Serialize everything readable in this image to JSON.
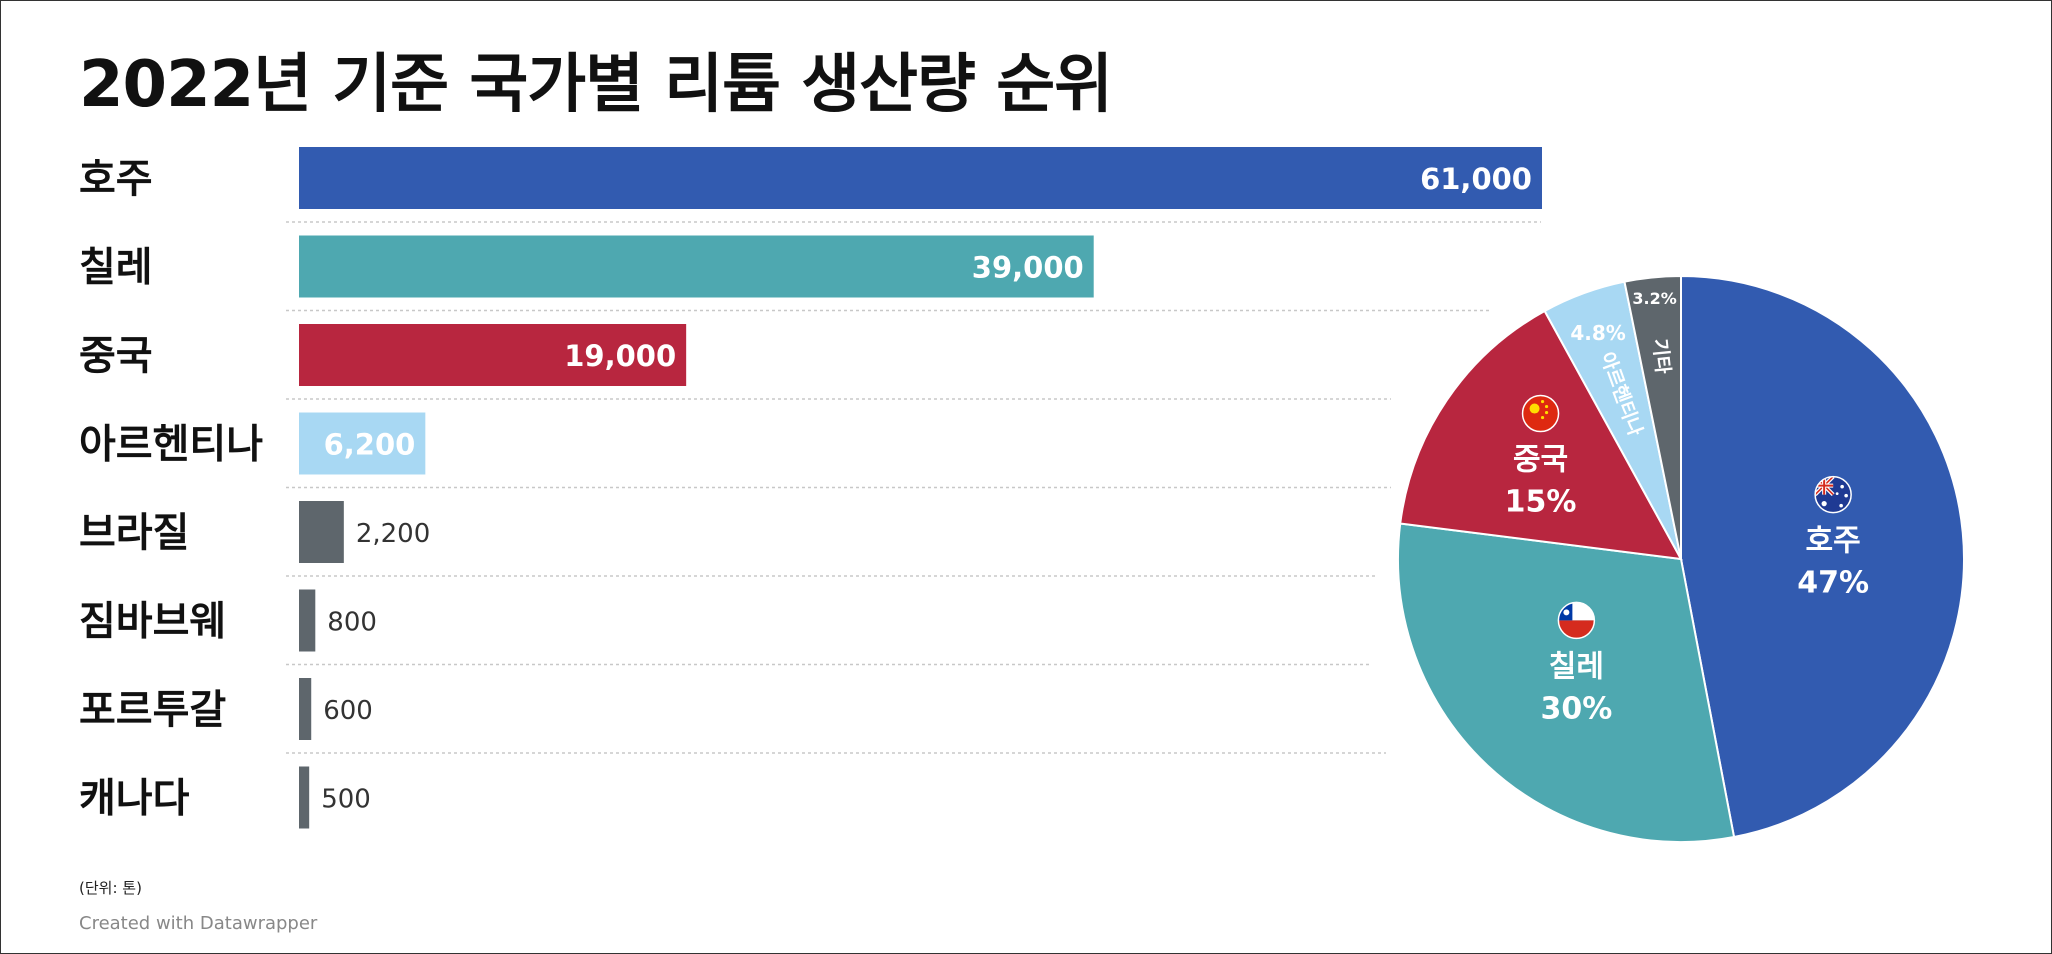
{
  "chart_data": [
    {
      "type": "bar",
      "title": "2022년 기준 국가별 리튬 생산량 순위",
      "categories": [
        "호주",
        "칠레",
        "중국",
        "아르헨티나",
        "브라질",
        "짐바브웨",
        "포르투갈",
        "캐나다"
      ],
      "values": [
        61000,
        39000,
        19000,
        6200,
        2200,
        800,
        600,
        500
      ],
      "value_labels": [
        "61,000",
        "39,000",
        "19,000",
        "6,200",
        "2,200",
        "800",
        "600",
        "500"
      ],
      "colors": [
        "#325bb0",
        "#4ea8b0",
        "#b8263f",
        "#a8d8f3",
        "#5e666c",
        "#5e666c",
        "#5e666c",
        "#5e666c"
      ],
      "xlim": [
        0,
        61000
      ],
      "grid": false,
      "unit_note": "(단위: 톤)",
      "credit": "Created with Datawrapper"
    },
    {
      "type": "pie",
      "slices": [
        {
          "label": "호주",
          "value": 47,
          "value_label": "47%",
          "color": "#325bb0",
          "flag": "australia-flag-icon"
        },
        {
          "label": "칠레",
          "value": 30,
          "value_label": "30%",
          "color": "#4ea8b0",
          "flag": "chile-flag-icon"
        },
        {
          "label": "중국",
          "value": 15,
          "value_label": "15%",
          "color": "#b8263f",
          "flag": "china-flag-icon"
        },
        {
          "label": "아르헨티나",
          "value": 4.8,
          "value_label": "4.8%",
          "color": "#a8d8f3"
        },
        {
          "label": "기타",
          "value": 3.2,
          "value_label": "3.2%",
          "color": "#5e666c"
        }
      ]
    }
  ]
}
